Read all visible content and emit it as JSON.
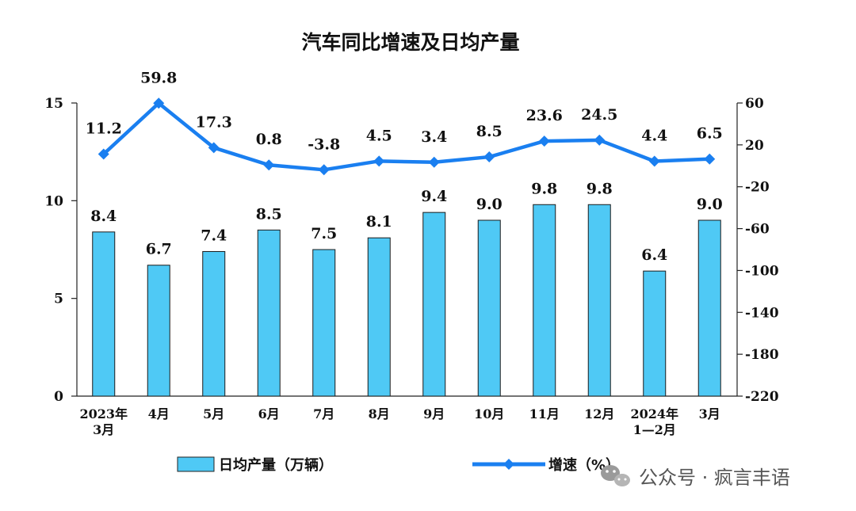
{
  "chart_data": {
    "type": "bar+line",
    "title": "汽车同比增速及日均产量",
    "categories": [
      [
        "2023年",
        "3月"
      ],
      [
        "4月"
      ],
      [
        "5月"
      ],
      [
        "6月"
      ],
      [
        "7月"
      ],
      [
        "8月"
      ],
      [
        "9月"
      ],
      [
        "10月"
      ],
      [
        "11月"
      ],
      [
        "12月"
      ],
      [
        "2024年",
        "1—2月"
      ],
      [
        "3月"
      ]
    ],
    "bar_series": {
      "name": "日均产量（万辆）",
      "values": [
        8.4,
        6.7,
        7.4,
        8.5,
        7.5,
        8.1,
        9.4,
        9.0,
        9.8,
        9.8,
        6.4,
        9.0
      ],
      "labels": [
        "8.4",
        "6.7",
        "7.4",
        "8.5",
        "7.5",
        "8.1",
        "9.4",
        "9.0",
        "9.8",
        "9.8",
        "6.4",
        "9.0"
      ],
      "color": "#4fc9f5"
    },
    "line_series": {
      "name": "增速（%）",
      "values": [
        11.2,
        59.8,
        17.3,
        0.8,
        -3.8,
        4.5,
        3.4,
        8.5,
        23.6,
        24.5,
        4.4,
        6.5
      ],
      "labels": [
        "11.2",
        "59.8",
        "17.3",
        "0.8",
        "-3.8",
        "4.5",
        "3.4",
        "8.5",
        "23.6",
        "24.5",
        "4.4",
        "6.5"
      ],
      "color": "#1a7ff0"
    },
    "left_axis": {
      "min": 0,
      "max": 15,
      "ticks": [
        "0",
        "5",
        "10",
        "15"
      ]
    },
    "right_axis": {
      "min": -220,
      "max": 60,
      "ticks": [
        "60",
        "20",
        "-20",
        "-60",
        "-100",
        "-140",
        "-180",
        "-220"
      ]
    },
    "grid": false,
    "legend": "bottom"
  },
  "watermark": {
    "text": "公众号 · 疯言丰语",
    "icon": "wechat-icon"
  }
}
